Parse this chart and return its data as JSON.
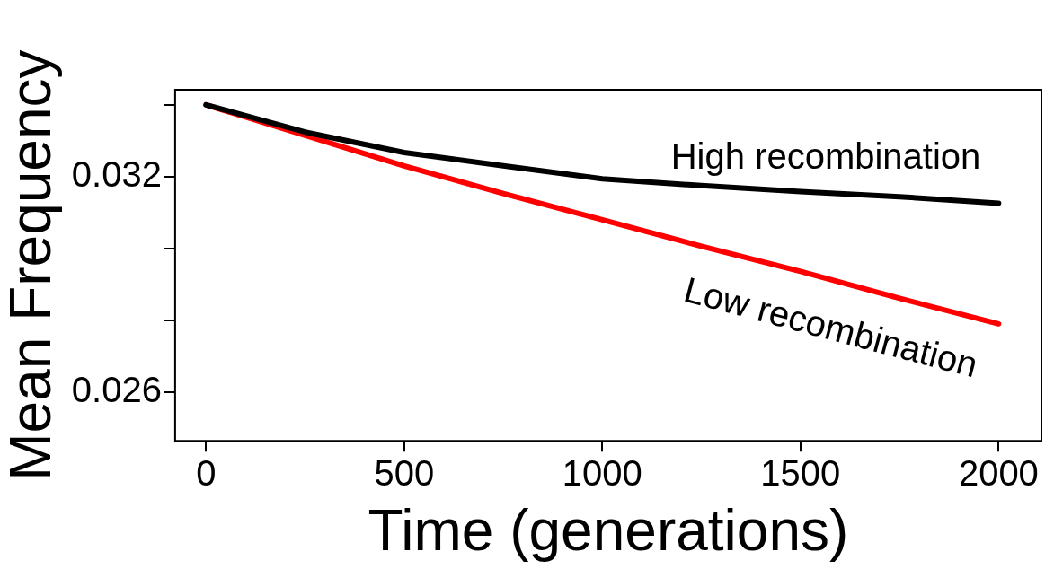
{
  "chart_data": {
    "type": "line",
    "xlabel": "Time (generations)",
    "ylabel": "Mean Frequency",
    "x": [
      0,
      250,
      500,
      750,
      1000,
      1250,
      1500,
      1750,
      2000
    ],
    "series": [
      {
        "name": "High recombination",
        "color": "#000000",
        "values": [
          0.034,
          0.03324,
          0.03267,
          0.0323,
          0.03194,
          0.03175,
          0.03158,
          0.03144,
          0.03126
        ]
      },
      {
        "name": "Low recombination",
        "color": "#ff0000",
        "values": [
          0.034,
          0.03315,
          0.0323,
          0.03153,
          0.0308,
          0.03006,
          0.02936,
          0.02861,
          0.0279
        ]
      }
    ],
    "xlim": [
      -78,
      2108
    ],
    "ylim": [
      0.02464,
      0.03442
    ],
    "xticks": [
      0,
      500,
      1000,
      1500,
      2000
    ],
    "yticks": [
      {
        "value": 0.026,
        "label": "0.026"
      },
      {
        "value": 0.028,
        "label": null
      },
      {
        "value": 0.03,
        "label": null
      },
      {
        "value": 0.032,
        "label": "0.032"
      },
      {
        "value": 0.034,
        "label": null
      }
    ],
    "grid": false,
    "legend": false,
    "marker": "none",
    "line_style": "solid"
  }
}
